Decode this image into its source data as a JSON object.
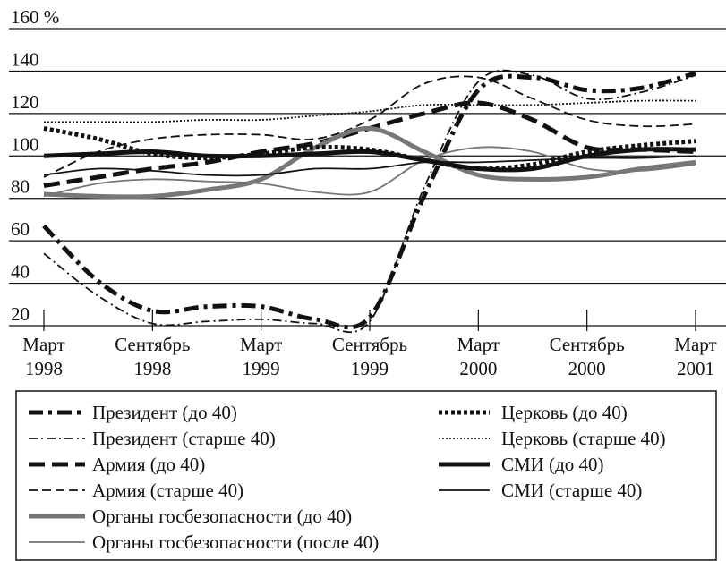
{
  "chart_data": {
    "type": "line",
    "categories": [
      "Март\n1998",
      null,
      "Сентябрь\n1998",
      null,
      "Март\n1999",
      null,
      "Сентябрь\n1999",
      null,
      "Март\n2000",
      null,
      "Сентябрь\n2000",
      null,
      "Март\n2001"
    ],
    "ylim": [
      20,
      160
    ],
    "yticks": [
      {
        "value": 160,
        "label": "160 %"
      },
      140,
      120,
      100,
      80,
      60,
      40,
      20
    ],
    "grid": true,
    "series": [
      {
        "name": "Президент (до 40)",
        "color": "#111111",
        "style": "dashdot",
        "weight": "thick",
        "values": [
          67,
          41,
          27,
          29,
          29,
          23,
          24,
          81,
          131,
          137,
          131,
          132,
          139
        ]
      },
      {
        "name": "Президент (старше 40)",
        "color": "#111111",
        "style": "dashdot",
        "weight": "thin",
        "values": [
          54,
          34,
          21,
          22,
          23,
          21,
          22,
          85,
          135,
          138,
          127,
          130,
          138
        ]
      },
      {
        "name": "Армия (до 40)",
        "color": "#111111",
        "style": "dash",
        "weight": "thick",
        "values": [
          86,
          90,
          94,
          97,
          102,
          106,
          113,
          120,
          125,
          117,
          104,
          103,
          102
        ]
      },
      {
        "name": "Армия (старше 40)",
        "color": "#111111",
        "style": "dash",
        "weight": "thin",
        "values": [
          90,
          102,
          108,
          110,
          110,
          108,
          117,
          134,
          137,
          127,
          117,
          114,
          115
        ]
      },
      {
        "name": "Органы госбезопасности (до 40)",
        "color": "#777777",
        "style": "solid",
        "weight": "thick",
        "values": [
          82,
          81,
          81,
          84,
          89,
          104,
          113,
          102,
          91,
          89,
          90,
          94,
          97
        ]
      },
      {
        "name": "Органы госбезопасности (после 40)",
        "color": "#777777",
        "style": "solid",
        "weight": "thin",
        "values": [
          81,
          87,
          89,
          88,
          87,
          83,
          83,
          98,
          104,
          102,
          94,
          93,
          96
        ]
      },
      {
        "name": "Церковь (до 40)",
        "color": "#111111",
        "style": "dot",
        "weight": "thick",
        "values": [
          113,
          108,
          101,
          99,
          101,
          104,
          103,
          98,
          94,
          96,
          102,
          105,
          107
        ]
      },
      {
        "name": "Церковь (старше 40)",
        "color": "#111111",
        "style": "dot",
        "weight": "thin",
        "values": [
          116,
          116,
          116,
          117,
          117,
          119,
          121,
          124,
          124,
          124,
          125,
          126,
          126
        ]
      },
      {
        "name": "СМИ (до 40)",
        "color": "#111111",
        "style": "solid",
        "weight": "thick",
        "values": [
          100,
          101,
          102,
          100,
          100,
          101,
          102,
          98,
          94,
          94,
          100,
          103,
          103
        ]
      },
      {
        "name": "СМИ (старше 40)",
        "color": "#111111",
        "style": "solid",
        "weight": "thin",
        "values": [
          91,
          94,
          93,
          91,
          91,
          94,
          94,
          97,
          97,
          98,
          99,
          99,
          100
        ]
      }
    ]
  }
}
